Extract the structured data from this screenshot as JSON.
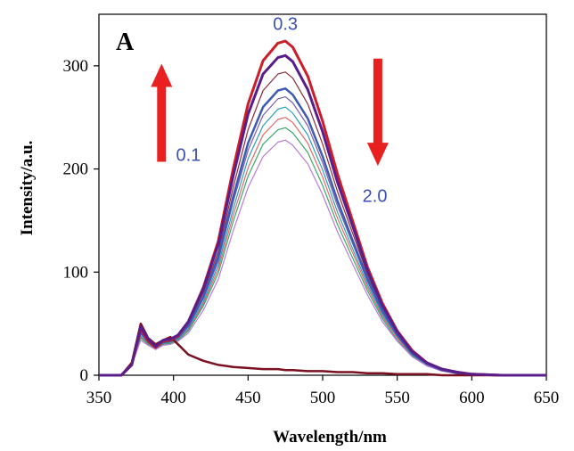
{
  "chart_data": {
    "type": "line",
    "panel_label": "A",
    "xlabel": "Wavelength/nm",
    "ylabel": "Intensity/a.u.",
    "xlim": [
      350,
      650
    ],
    "ylim": [
      0,
      350
    ],
    "xticks": [
      350,
      400,
      450,
      500,
      550,
      600,
      650
    ],
    "yticks": [
      0,
      100,
      200,
      300
    ],
    "grid": false,
    "legend": "none",
    "annotations": [
      {
        "text": "0.3",
        "x": 475,
        "y": 335,
        "color": "#3a4fb0"
      },
      {
        "text": "0.1",
        "x": 410,
        "y": 208,
        "color": "#3a4fb0"
      },
      {
        "text": "2.0",
        "x": 535,
        "y": 168,
        "color": "#3a4fb0"
      }
    ],
    "arrows": [
      {
        "direction": "up",
        "x": 392,
        "y_from": 207,
        "y_to": 302,
        "color": "#e82020"
      },
      {
        "direction": "down",
        "x": 537,
        "y_from": 307,
        "y_to": 203,
        "color": "#e82020"
      }
    ],
    "x": [
      350,
      365,
      372,
      378,
      383,
      388,
      393,
      398,
      403,
      410,
      420,
      430,
      440,
      450,
      460,
      470,
      475,
      480,
      490,
      500,
      510,
      520,
      530,
      540,
      550,
      560,
      570,
      580,
      590,
      600,
      620,
      650
    ],
    "series": [
      {
        "color": "#cc1e2a",
        "width": 3,
        "values": [
          0,
          0,
          10,
          45,
          33,
          27,
          33,
          34,
          38,
          52,
          85,
          130,
          200,
          263,
          305,
          322,
          324,
          318,
          290,
          246,
          195,
          150,
          105,
          70,
          43,
          24,
          12,
          6,
          3,
          1,
          0,
          0
        ]
      },
      {
        "color": "#5a1e8c",
        "width": 3,
        "values": [
          0,
          0,
          10,
          47,
          35,
          28,
          34,
          35,
          39,
          52,
          84,
          127,
          193,
          253,
          292,
          308,
          310,
          304,
          277,
          236,
          187,
          145,
          102,
          68,
          42,
          23,
          12,
          6,
          3,
          1,
          0,
          0
        ]
      },
      {
        "color": "#8b2a3a",
        "width": 1.2,
        "values": [
          0,
          0,
          10,
          44,
          34,
          28,
          33,
          35,
          38,
          50,
          80,
          120,
          182,
          238,
          276,
          292,
          294,
          288,
          263,
          224,
          178,
          138,
          98,
          65,
          40,
          22,
          11,
          6,
          3,
          1,
          0,
          0
        ]
      },
      {
        "color": "#3d5ab5",
        "width": 2.5,
        "values": [
          0,
          0,
          10,
          42,
          33,
          27,
          32,
          33,
          37,
          48,
          76,
          115,
          173,
          225,
          260,
          276,
          278,
          272,
          249,
          212,
          169,
          131,
          94,
          63,
          39,
          21,
          11,
          5,
          2,
          1,
          0,
          0
        ]
      },
      {
        "color": "#7a5cb0",
        "width": 1.2,
        "values": [
          0,
          0,
          10,
          40,
          32,
          27,
          32,
          33,
          36,
          47,
          74,
          111,
          168,
          218,
          252,
          268,
          270,
          264,
          242,
          206,
          164,
          128,
          91,
          61,
          38,
          21,
          10,
          5,
          2,
          1,
          0,
          0
        ]
      },
      {
        "color": "#2aa0b8",
        "width": 1.2,
        "values": [
          0,
          0,
          10,
          38,
          31,
          26,
          31,
          32,
          35,
          45,
          71,
          107,
          161,
          210,
          242,
          258,
          260,
          254,
          233,
          199,
          158,
          123,
          88,
          59,
          37,
          20,
          10,
          5,
          2,
          1,
          0,
          0
        ]
      },
      {
        "color": "#e26a6a",
        "width": 1.2,
        "values": [
          0,
          0,
          10,
          37,
          30,
          26,
          30,
          31,
          34,
          44,
          69,
          103,
          155,
          201,
          233,
          248,
          250,
          245,
          225,
          192,
          152,
          119,
          85,
          57,
          36,
          19,
          10,
          5,
          2,
          1,
          0,
          0
        ]
      },
      {
        "color": "#3aa86a",
        "width": 1.2,
        "values": [
          0,
          0,
          10,
          36,
          30,
          25,
          30,
          31,
          34,
          43,
          67,
          99,
          149,
          193,
          224,
          238,
          240,
          235,
          216,
          184,
          146,
          114,
          82,
          55,
          34,
          19,
          9,
          5,
          2,
          1,
          0,
          0
        ]
      },
      {
        "color": "#b87ad8",
        "width": 1.2,
        "values": [
          0,
          0,
          10,
          34,
          29,
          25,
          29,
          30,
          33,
          41,
          63,
          93,
          140,
          182,
          212,
          226,
          228,
          223,
          205,
          175,
          139,
          108,
          78,
          52,
          33,
          18,
          9,
          4,
          2,
          1,
          0,
          0
        ]
      },
      {
        "color": "#7a1020",
        "width": 2.5,
        "values": [
          0,
          0,
          12,
          50,
          36,
          30,
          34,
          37,
          30,
          20,
          14,
          10,
          8,
          7,
          6,
          6,
          5,
          5,
          4,
          4,
          3,
          3,
          2,
          2,
          1,
          1,
          1,
          0,
          0,
          0,
          0,
          0
        ]
      }
    ]
  }
}
